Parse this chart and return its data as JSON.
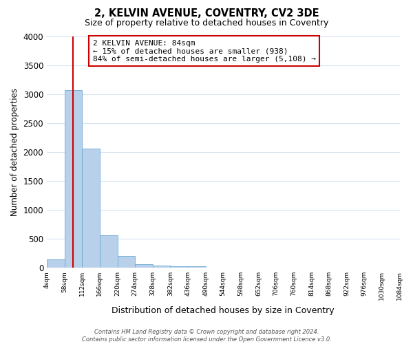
{
  "title": "2, KELVIN AVENUE, COVENTRY, CV2 3DE",
  "subtitle": "Size of property relative to detached houses in Coventry",
  "xlabel": "Distribution of detached houses by size in Coventry",
  "ylabel": "Number of detached properties",
  "bin_edges": [
    4,
    58,
    112,
    166,
    220,
    274,
    328,
    382,
    436,
    490,
    544,
    598,
    652,
    706,
    760,
    814,
    868,
    922,
    976,
    1030,
    1084
  ],
  "bar_heights": [
    150,
    3070,
    2060,
    560,
    200,
    65,
    40,
    30,
    20,
    0,
    0,
    0,
    0,
    0,
    0,
    0,
    0,
    0,
    0,
    0
  ],
  "bar_color": "#b8d0ea",
  "bar_edge_color": "#6aaad4",
  "property_size": 84,
  "property_line_color": "#cc0000",
  "annotation_line1": "2 KELVIN AVENUE: 84sqm",
  "annotation_line2": "← 15% of detached houses are smaller (938)",
  "annotation_line3": "84% of semi-detached houses are larger (5,108) →",
  "annotation_box_facecolor": "#ffffff",
  "annotation_box_edgecolor": "#cc0000",
  "ylim": [
    0,
    4000
  ],
  "yticks": [
    0,
    500,
    1000,
    1500,
    2000,
    2500,
    3000,
    3500,
    4000
  ],
  "figure_bg": "#ffffff",
  "axes_bg": "#ffffff",
  "grid_color": "#d8e4f0",
  "footer_line1": "Contains HM Land Registry data © Crown copyright and database right 2024.",
  "footer_line2": "Contains public sector information licensed under the Open Government Licence v3.0."
}
